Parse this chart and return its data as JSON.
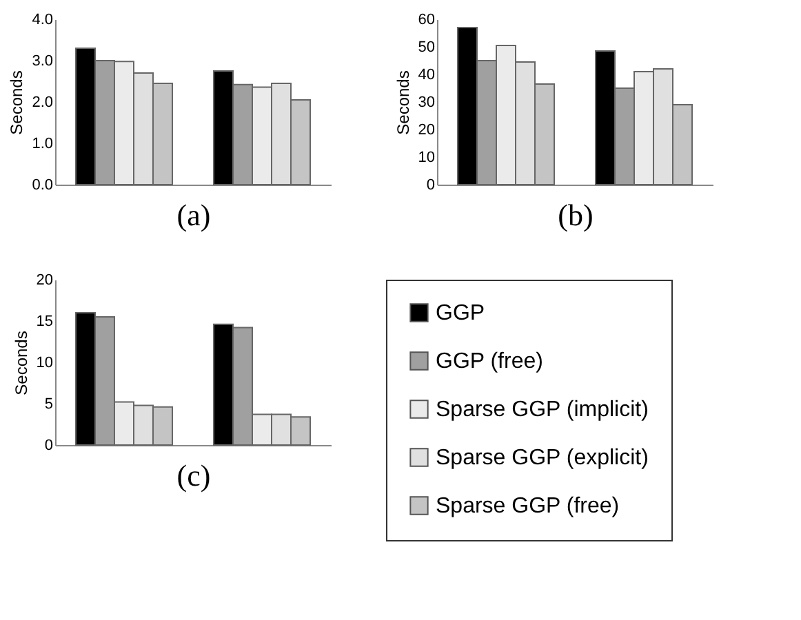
{
  "chart_data": [
    {
      "type": "bar",
      "xlabel": "(a)",
      "ylabel": "Seconds",
      "categories": [
        null,
        null
      ],
      "ylim": [
        0,
        4
      ],
      "yticks": [
        {
          "value": 0,
          "label": "0.0"
        },
        {
          "value": 1,
          "label": "1.0"
        },
        {
          "value": 2,
          "label": "2.0"
        },
        {
          "value": 3,
          "label": "3.0"
        },
        {
          "value": 4,
          "label": "4.0"
        }
      ],
      "tick_labels": "y",
      "grid": false,
      "legend": false,
      "series": [
        {
          "color": "#000000",
          "values": [
            3.3,
            2.75
          ]
        },
        {
          "color": "#a0a0a0",
          "values": [
            3.0,
            2.42
          ]
        },
        {
          "color": "#ebebeb",
          "values": [
            2.98,
            2.36
          ]
        },
        {
          "color": "#e0e0e0",
          "values": [
            2.7,
            2.45
          ]
        },
        {
          "color": "#c4c4c4",
          "values": [
            2.45,
            2.05
          ]
        }
      ]
    },
    {
      "type": "bar",
      "xlabel": "(b)",
      "ylabel": "Seconds",
      "categories": [
        null,
        null
      ],
      "ylim": [
        0,
        60
      ],
      "yticks": [
        0,
        10,
        20,
        30,
        40,
        50,
        60
      ],
      "tick_labels": "y",
      "grid": false,
      "legend": false,
      "series": [
        {
          "color": "#000000",
          "values": [
            57,
            48.5
          ]
        },
        {
          "color": "#a0a0a0",
          "values": [
            45,
            35
          ]
        },
        {
          "color": "#ebebeb",
          "values": [
            50.5,
            41
          ]
        },
        {
          "color": "#e0e0e0",
          "values": [
            44.5,
            42
          ]
        },
        {
          "color": "#c4c4c4",
          "values": [
            36.5,
            29
          ]
        }
      ]
    },
    {
      "type": "bar",
      "xlabel": "(c)",
      "ylabel": "Seconds",
      "categories": [
        null,
        null
      ],
      "ylim": [
        0,
        20
      ],
      "yticks": [
        0,
        5,
        10,
        15,
        20
      ],
      "tick_labels": "y",
      "grid": false,
      "legend": "right",
      "series": [
        {
          "name": "GGP",
          "color": "#000000",
          "values": [
            16,
            14.6
          ]
        },
        {
          "name": "GGP (free)",
          "color": "#a0a0a0",
          "values": [
            15.5,
            14.2
          ]
        },
        {
          "name": "Sparse GGP (implicit)",
          "color": "#ebebeb",
          "values": [
            5.2,
            3.7
          ]
        },
        {
          "name": "Sparse GGP (explicit)",
          "color": "#e0e0e0",
          "values": [
            4.8,
            3.7
          ]
        },
        {
          "name": "Sparse GGP (free)",
          "color": "#c4c4c4",
          "values": [
            4.6,
            3.4
          ]
        }
      ]
    }
  ]
}
